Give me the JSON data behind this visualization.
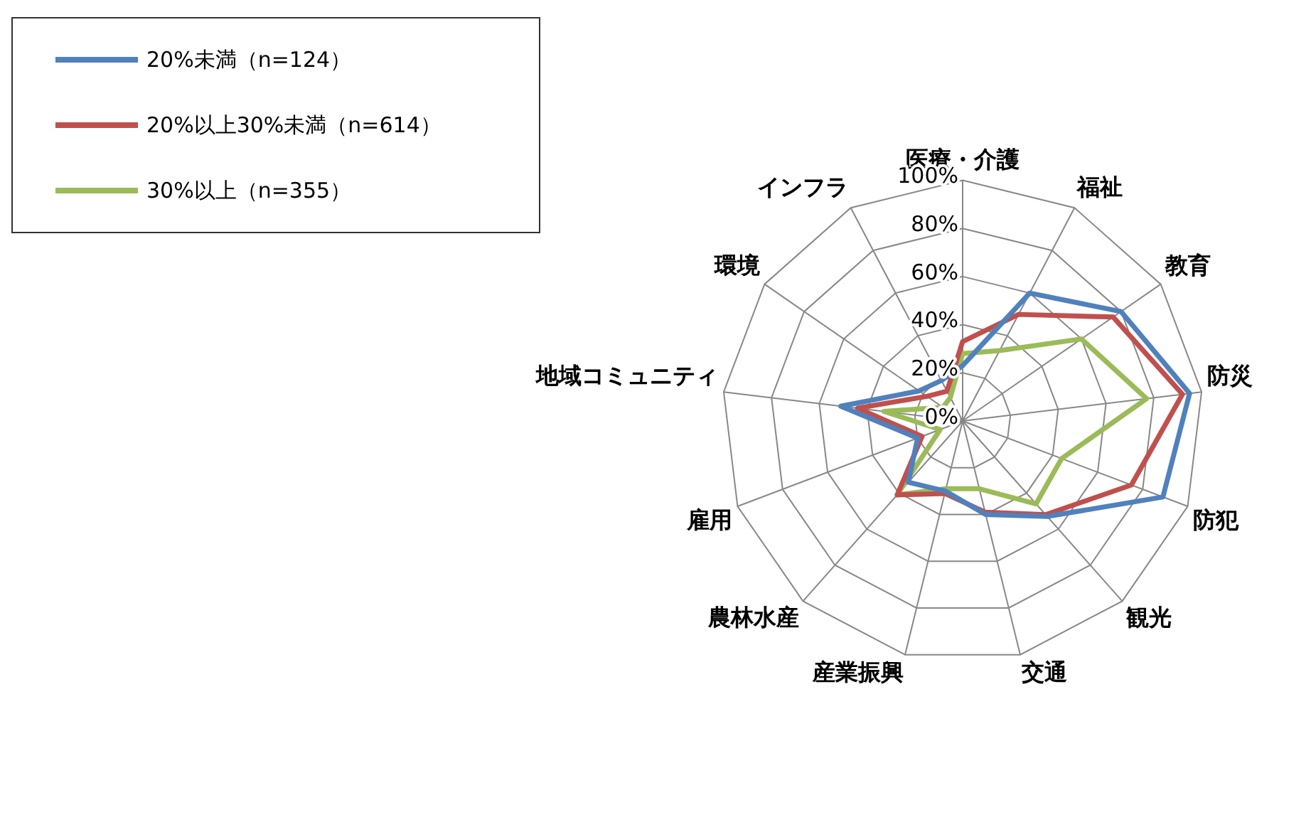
{
  "chart_data": {
    "type": "radar",
    "categories": [
      "医療・介護",
      "福祉",
      "教育",
      "防災",
      "防犯",
      "観光",
      "交通",
      "産業振興",
      "農林水産",
      "雇用",
      "地域コミュニティ",
      "環境",
      "インフラ"
    ],
    "series": [
      {
        "name": "20%未満（n=124）",
        "color": "#4f81bd",
        "values": [
          23,
          60,
          80,
          95,
          89,
          53,
          40,
          30,
          34,
          20,
          51,
          22,
          19
        ]
      },
      {
        "name": "20%以上30%未満（n=614）",
        "color": "#c0504d",
        "values": [
          33,
          50,
          76,
          92,
          75,
          52,
          39,
          31,
          41,
          18,
          44,
          18,
          14
        ]
      },
      {
        "name": "30%以上（n=355）",
        "color": "#9bbb59",
        "values": [
          28,
          33,
          60,
          77,
          44,
          46,
          29,
          29,
          41,
          10,
          33,
          10,
          11
        ]
      }
    ],
    "ylim": [
      0,
      100
    ],
    "yticks": [
      {
        "value": 0,
        "label": "0%"
      },
      {
        "value": 20,
        "label": "20%"
      },
      {
        "value": 40,
        "label": "40%"
      },
      {
        "value": 60,
        "label": "60%"
      },
      {
        "value": 80,
        "label": "80%"
      },
      {
        "value": 100,
        "label": "100%"
      }
    ],
    "grid": true,
    "legend": "top left",
    "marker": "none"
  }
}
